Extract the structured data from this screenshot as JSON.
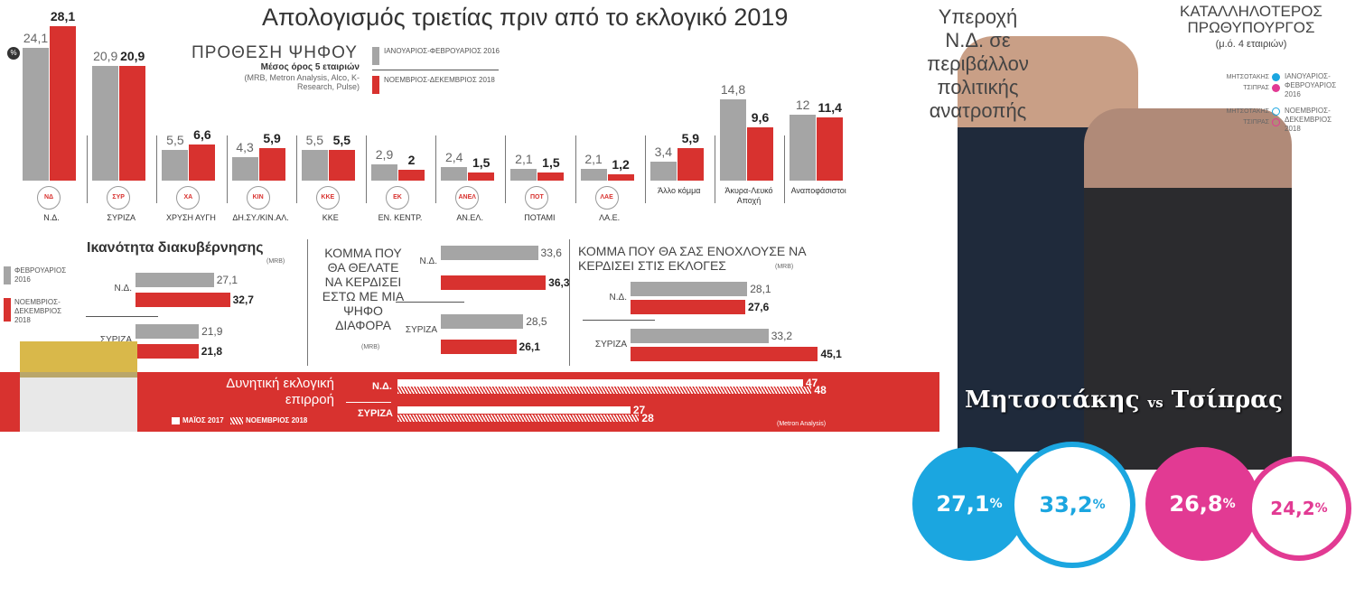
{
  "title": "Απολογισμός τριετίας πριν από το εκλογικό 2019",
  "percent_icon": "%",
  "chart_data": [
    {
      "type": "bar",
      "title": "ΠΡΟΘΕΣΗ ΨΗΦΟΥ",
      "subtitle": "Μέσος όρος 5 εταιριών",
      "source": "(MRB, Metron Analysis, Alco, K-Research, Pulse)",
      "legend": [
        "ΙΑΝΟΥΑΡΙΟΣ-ΦΕΒΡΟΥΑΡΙΟΣ 2016",
        "ΝΟΕΜΒΡΙΟΣ-ΔΕΚΕΜΒΡΙΟΣ 2018"
      ],
      "categories": [
        "Ν.Δ.",
        "ΣΥΡΙΖΑ",
        "ΧΡΥΣΗ ΑΥΓΗ",
        "ΔΗ.ΣΥ./ΚΙΝ.ΑΛ.",
        "ΚΚΕ",
        "ΕΝ. ΚΕΝΤΡ.",
        "ΑΝ.ΕΛ.",
        "ΠΟΤΑΜΙ",
        "ΛΑ.Ε.",
        "Άλλο κόμμα",
        "Άκυρα-Λευκό Αποχή",
        "Αναποφάσιστοι"
      ],
      "logos": [
        "ΝΔ",
        "ΣΥΡ",
        "ΧΑ",
        "ΚΙΝ",
        "ΚΚΕ",
        "ΕΚ",
        "ΑΝΕΛ",
        "ΠΟΤ",
        "ΛΑΕ",
        "",
        "",
        ""
      ],
      "series": [
        {
          "name": "2016",
          "values": [
            "24,1",
            "20,9",
            "5,5",
            "4,3",
            "5,5",
            "2,9",
            "2,4",
            "2,1",
            "2,1",
            "3,4",
            "14,8",
            "12"
          ]
        },
        {
          "name": "2018",
          "values": [
            "28,1",
            "20,9",
            "6,6",
            "5,9",
            "5,5",
            "2",
            "1,5",
            "1,5",
            "1,2",
            "5,9",
            "9,6",
            "11,4"
          ]
        }
      ]
    },
    {
      "type": "bar",
      "title": "Ικανότητα διακυβέρνησης",
      "source": "(MRB)",
      "legend": [
        "ΦΕΒΡΟΥΑΡΙΟΣ 2016",
        "ΝΟΕΜΒΡΙΟΣ-ΔΕΚΕΜΒΡΙΟΣ 2018"
      ],
      "categories": [
        "Ν.Δ.",
        "ΣΥΡΙΖΑ"
      ],
      "series": [
        {
          "name": "2016",
          "values": [
            "27,1",
            "21,9"
          ]
        },
        {
          "name": "2018",
          "values": [
            "32,7",
            "21,8"
          ]
        }
      ]
    },
    {
      "type": "bar",
      "title": "ΚΟΜΜΑ ΠΟΥ ΘΑ ΘΕΛΑΤΕ ΝΑ ΚΕΡΔΙΣΕΙ ΕΣΤΩ ΜΕ ΜΙΑ ΨΗΦΟ ΔΙΑΦΟΡΑ",
      "source": "(MRB)",
      "categories": [
        "Ν.Δ.",
        "ΣΥΡΙΖΑ"
      ],
      "series": [
        {
          "name": "2016",
          "values": [
            "33,6",
            "28,5"
          ]
        },
        {
          "name": "2018",
          "values": [
            "36,3",
            "26,1"
          ]
        }
      ]
    },
    {
      "type": "bar",
      "title": "ΚΟΜΜΑ ΠΟΥ ΘΑ ΣΑΣ ΕΝΟΧΛΟΥΣΕ ΝΑ ΚΕΡΔΙΣΕΙ ΣΤΙΣ ΕΚΛΟΓΕΣ",
      "source": "(MRB)",
      "categories": [
        "Ν.Δ.",
        "ΣΥΡΙΖΑ"
      ],
      "series": [
        {
          "name": "2016",
          "values": [
            "28,1",
            "33,2"
          ]
        },
        {
          "name": "2018",
          "values": [
            "27,6",
            "45,1"
          ]
        }
      ]
    },
    {
      "type": "bar",
      "title": "Δυνητική εκλογική επιρροή",
      "source": "(Metron Analysis)",
      "legend": [
        "ΜΑΪΟΣ 2017",
        "ΝΟΕΜΒΡΙΟΣ 2018"
      ],
      "categories": [
        "Ν.Δ.",
        "ΣΥΡΙΖΑ"
      ],
      "series": [
        {
          "name": "2017",
          "values": [
            "47",
            "27"
          ]
        },
        {
          "name": "2018",
          "values": [
            "48",
            "28"
          ]
        }
      ]
    }
  ],
  "right": {
    "headline": [
      "Υπεροχή",
      "Ν.Δ. σε",
      "περιβάλλον",
      "πολιτικής",
      "ανατροπής"
    ],
    "pm_title": [
      "ΚΑΤΑΛΛΗΛΟΤΕΡΟΣ",
      "ΠΡΩΘΥΠΟΥΡΓΟΣ"
    ],
    "pm_sub": "(μ.ό. 4 εταιριών)",
    "legend": {
      "mitsotakis": "ΜΗΤΣΟΤΑΚΗΣ",
      "tsipras": "ΤΣΙΠΡΑΣ",
      "p1": [
        "ΙΑΝΟΥΑΡΙΟΣ-",
        "ΦΕΒΡΟΥΑΡΙΟΣ",
        "2016"
      ],
      "p2": [
        "ΝΟΕΜΒΡΙΟΣ-",
        "ΔΕΚΕΜΒΡΙΟΣ",
        "2018"
      ]
    },
    "vs": {
      "left": "Μητσοτάκης",
      "mid": "vs",
      "right": "Τσίπρας"
    },
    "circles": [
      {
        "value": "27,1",
        "unit": "%"
      },
      {
        "value": "33,2",
        "unit": "%"
      },
      {
        "value": "26,8",
        "unit": "%"
      },
      {
        "value": "24,2",
        "unit": "%"
      }
    ],
    "colors": {
      "blue": "#1ba6e0",
      "pink": "#e23a93",
      "red": "#d8322f",
      "gray": "#a5a5a5"
    }
  }
}
